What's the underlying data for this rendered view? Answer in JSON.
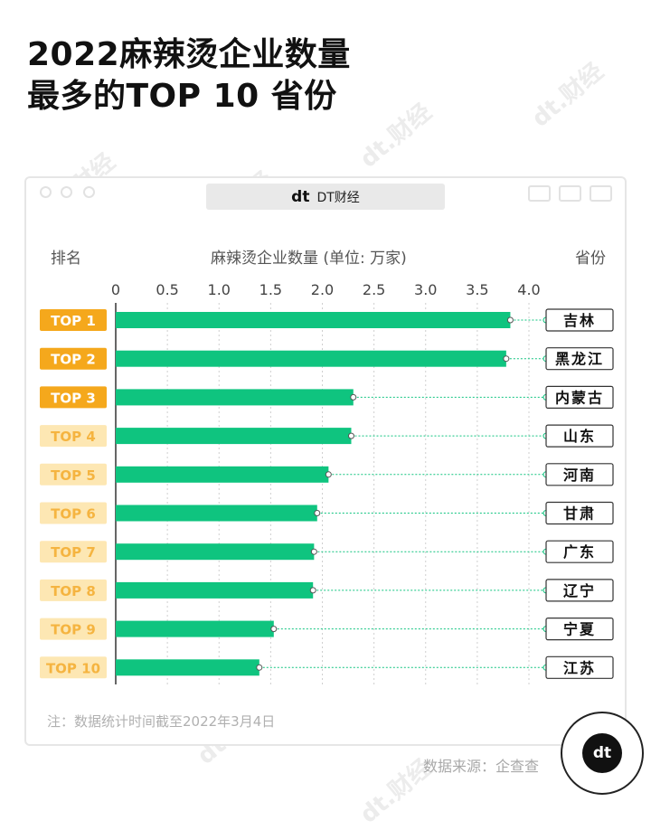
{
  "header": {
    "title_line1": "2022麻辣烫企业数量",
    "title_line2": "最多的TOP 10 省份"
  },
  "window": {
    "title": "DT财经",
    "logo": "dt"
  },
  "labels": {
    "rank_header": "排名",
    "axis_header": "麻辣烫企业数量 (单位: 万家)",
    "province_header": "省份"
  },
  "footer": {
    "note": "注：数据统计时间截至2022年3月4日",
    "source": "数据来源：企查查",
    "badge": "dt"
  },
  "watermark": "dt.财经",
  "colors": {
    "bar": "#0fc47f",
    "rank_top": "#f5a81c",
    "rank_rest": "#fde7b3",
    "rank_rest_text": "#f5b440"
  },
  "chart_data": {
    "type": "bar",
    "orientation": "horizontal",
    "title": "2022麻辣烫企业数量最多的TOP 10 省份",
    "xlabel": "麻辣烫企业数量 (单位: 万家)",
    "ylabel": "排名",
    "xlim": [
      0,
      4.0
    ],
    "ticks": [
      "0",
      "0.5",
      "1.0",
      "1.5",
      "2.0",
      "2.5",
      "3.0",
      "3.5",
      "4.0"
    ],
    "grid": true,
    "ranks": [
      "TOP 1",
      "TOP 2",
      "TOP 3",
      "TOP 4",
      "TOP 5",
      "TOP 6",
      "TOP 7",
      "TOP 8",
      "TOP 9",
      "TOP 10"
    ],
    "categories": [
      "吉林",
      "黑龙江",
      "内蒙古",
      "山东",
      "河南",
      "甘肃",
      "广东",
      "辽宁",
      "宁夏",
      "江苏"
    ],
    "values": [
      3.82,
      3.78,
      2.3,
      2.28,
      2.06,
      1.95,
      1.92,
      1.91,
      1.53,
      1.39
    ]
  }
}
